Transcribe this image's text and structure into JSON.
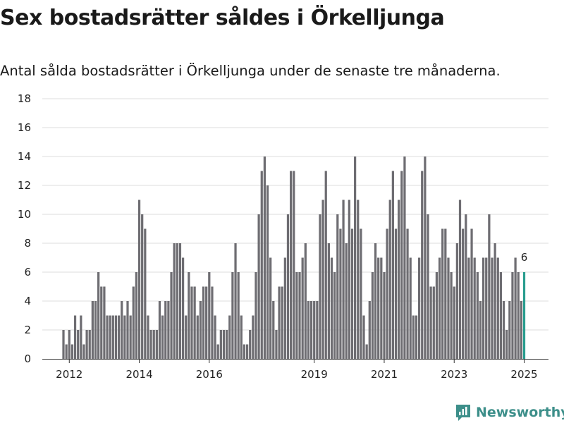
{
  "chart_data": {
    "type": "bar",
    "title": "Sex bostadsrätter såldes i Örkelljunga",
    "subtitle": "Antal sålda bostadsrätter i Örkelljunga under de senaste tre månaderna.",
    "ylim": [
      0,
      18
    ],
    "yticks": [
      "0",
      "2",
      "4",
      "6",
      "8",
      "10",
      "12",
      "14",
      "16",
      "18"
    ],
    "xticks": [
      {
        "label": "2012",
        "index": 2
      },
      {
        "label": "2014",
        "index": 26
      },
      {
        "label": "2016",
        "index": 50
      },
      {
        "label": "2019",
        "index": 86
      },
      {
        "label": "2021",
        "index": 110
      },
      {
        "label": "2023",
        "index": 134
      },
      {
        "label": "2025",
        "index": 158
      }
    ],
    "grid": true,
    "highlight_color": "#2a9d8f",
    "bar_color": "#6e6d72",
    "last_value_label": "6",
    "values": [
      2,
      1,
      2,
      1,
      3,
      2,
      3,
      1,
      2,
      2,
      4,
      4,
      6,
      5,
      5,
      3,
      3,
      3,
      3,
      3,
      4,
      3,
      4,
      3,
      5,
      6,
      11,
      10,
      9,
      3,
      2,
      2,
      2,
      4,
      3,
      4,
      4,
      6,
      8,
      8,
      8,
      7,
      3,
      6,
      5,
      5,
      3,
      4,
      5,
      5,
      6,
      5,
      3,
      1,
      2,
      2,
      2,
      3,
      6,
      8,
      6,
      3,
      1,
      1,
      2,
      3,
      6,
      10,
      13,
      14,
      12,
      7,
      4,
      2,
      5,
      5,
      7,
      10,
      13,
      13,
      6,
      6,
      7,
      8,
      4,
      4,
      4,
      4,
      10,
      11,
      13,
      8,
      7,
      6,
      10,
      9,
      11,
      8,
      11,
      9,
      14,
      11,
      9,
      3,
      1,
      4,
      6,
      8,
      7,
      7,
      6,
      9,
      11,
      13,
      9,
      11,
      13,
      14,
      9,
      7,
      3,
      3,
      7,
      13,
      14,
      10,
      5,
      5,
      6,
      7,
      9,
      9,
      7,
      6,
      5,
      8,
      11,
      9,
      10,
      7,
      9,
      7,
      6,
      4,
      7,
      7,
      10,
      7,
      8,
      7,
      6,
      4,
      2,
      4,
      6,
      7,
      6,
      4,
      6
    ]
  },
  "brand": {
    "name": "Newsworthy",
    "icon": "newsworthy-logo-icon",
    "color": "#3d8f8a"
  }
}
